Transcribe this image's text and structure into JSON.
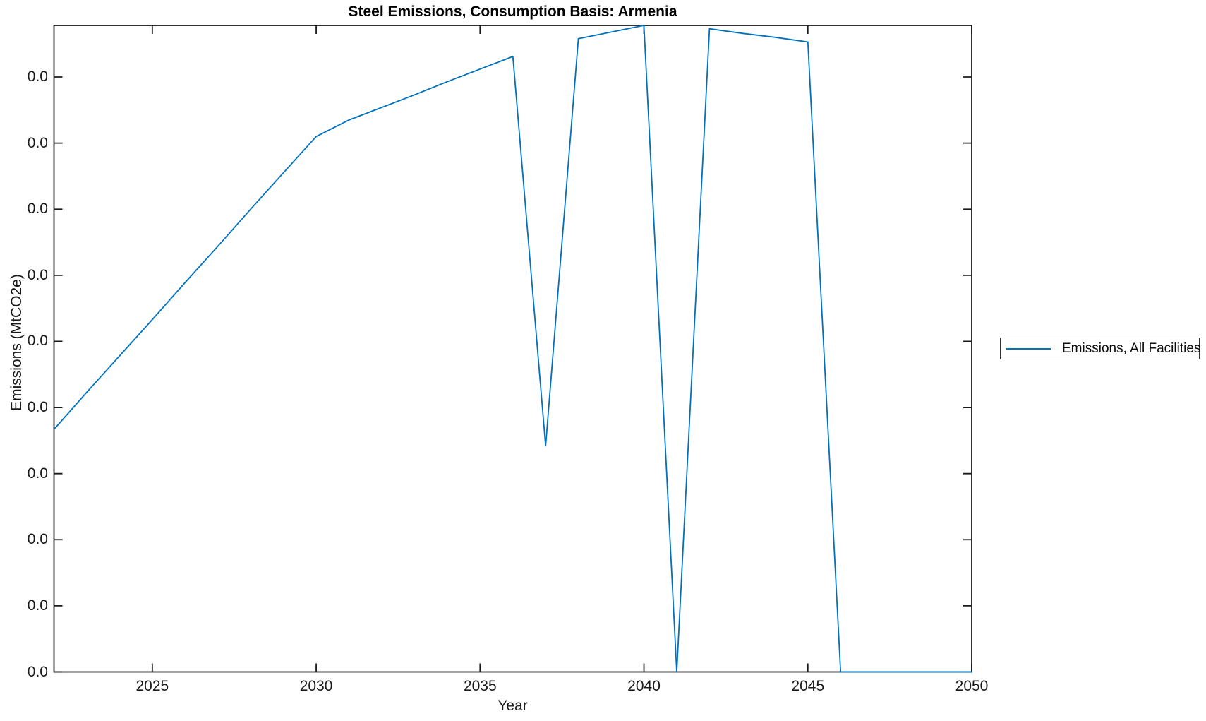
{
  "chart_data": {
    "type": "line",
    "title": "Steel Emissions, Consumption Basis: Armenia",
    "xlabel": "Year",
    "ylabel": "Emissions (MtCO2e)",
    "grid": false,
    "legend_position": "outside-right",
    "xlim": [
      2022,
      2050
    ],
    "ylim_axis_units": [
      0,
      9.78
    ],
    "xticks": [
      2025,
      2030,
      2035,
      2040,
      2045,
      2050
    ],
    "xtick_labels": [
      "2025",
      "2030",
      "2035",
      "2040",
      "2045",
      "2050"
    ],
    "ytick_positions_axis_units": [
      0,
      1,
      2,
      3,
      4,
      5,
      6,
      7,
      8,
      9
    ],
    "ytick_labels": [
      "0.0",
      "0.0",
      "0.0",
      "0.0",
      "0.0",
      "0.0",
      "0.0",
      "0.0",
      "0.0",
      "0.0"
    ],
    "x": [
      2022,
      2023,
      2024,
      2025,
      2026,
      2027,
      2028,
      2029,
      2030,
      2031,
      2032,
      2033,
      2034,
      2035,
      2036,
      2037,
      2038,
      2039,
      2040,
      2041,
      2042,
      2043,
      2044,
      2045,
      2046,
      2047,
      2048,
      2049,
      2050
    ],
    "series": [
      {
        "name": "Emissions, All Facilities",
        "color": "#0072BD",
        "values_axis_units": [
          3.67,
          4.23,
          4.78,
          5.33,
          5.89,
          6.44,
          7.0,
          7.55,
          8.1,
          8.35,
          8.54,
          8.73,
          8.93,
          9.12,
          9.31,
          3.42,
          9.58,
          9.68,
          9.78,
          0.0,
          9.73,
          9.66,
          9.6,
          9.53,
          0.0,
          0.0,
          0.0,
          0.0,
          0.0
        ]
      }
    ]
  },
  "colors": {
    "line": "#0072BD",
    "axis": "#1a1a1a",
    "title": "#000000",
    "background": "#ffffff"
  }
}
